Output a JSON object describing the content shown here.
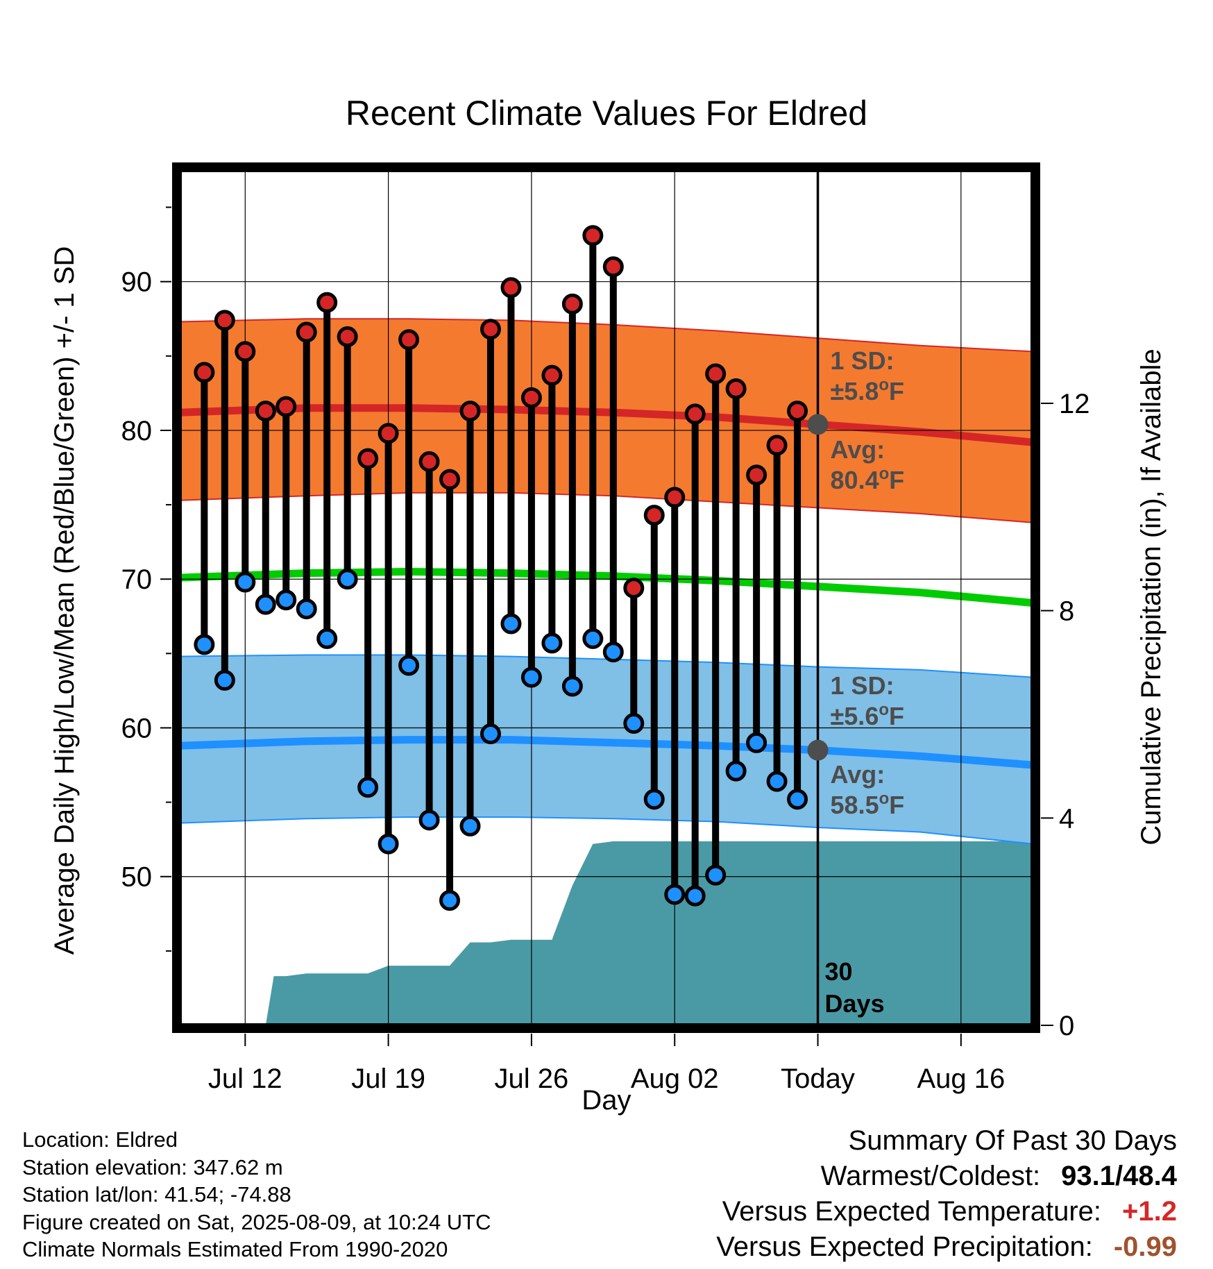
{
  "chart_data": {
    "type": "line",
    "title": "Recent Climate Values For Eldred",
    "xlabel": "Day",
    "ylabel": "Average Daily High/Low/Mean (Red/Blue/Green) +/- 1 SD",
    "y2label": "Cumulative Precipitation (in), If Available",
    "ylim": [
      40,
      97.5
    ],
    "y2lim": [
      0,
      16.5
    ],
    "yticks": [
      50,
      60,
      70,
      80,
      90
    ],
    "y2ticks": [
      0,
      4,
      8,
      12
    ],
    "x_tick_labels": [
      "Jul 12",
      "Jul 19",
      "Jul 26",
      "Aug 02",
      "Today",
      "Aug 16"
    ],
    "x_tick_days": [
      12,
      19,
      26,
      33,
      40,
      47
    ],
    "xlim": [
      8.8,
      50.5
    ],
    "grid": true,
    "today_day": 40,
    "days_label": "30\nDays",
    "daily_days": [
      10,
      11,
      12,
      13,
      14,
      15,
      16,
      17,
      18,
      19,
      20,
      21,
      22,
      23,
      24,
      25,
      26,
      27,
      28,
      29,
      30,
      31,
      32,
      33,
      34,
      35,
      36,
      37,
      38,
      39
    ],
    "daily_high": [
      83.9,
      87.4,
      85.3,
      81.3,
      81.6,
      86.6,
      88.6,
      86.3,
      78.1,
      79.8,
      86.1,
      77.9,
      76.7,
      81.3,
      86.8,
      89.6,
      82.2,
      83.7,
      88.5,
      93.1,
      91.0,
      69.4,
      74.3,
      75.5,
      81.1,
      83.8,
      82.8,
      77.0,
      79.0,
      81.3
    ],
    "daily_low": [
      65.6,
      63.2,
      69.8,
      68.3,
      68.6,
      68.0,
      66.0,
      70.0,
      56.0,
      52.2,
      64.2,
      53.8,
      48.4,
      53.4,
      59.6,
      67.0,
      63.4,
      65.7,
      62.8,
      66.0,
      65.1,
      60.3,
      55.2,
      48.8,
      48.7,
      50.1,
      57.1,
      59.0,
      56.4,
      55.2
    ],
    "normals_day": [
      8.8,
      15,
      20,
      25,
      30,
      35,
      40,
      45,
      50.5
    ],
    "normal_high_avg": [
      81.2,
      81.5,
      81.5,
      81.4,
      81.2,
      80.9,
      80.4,
      79.9,
      79.2
    ],
    "normal_high_upper": [
      87.3,
      87.5,
      87.5,
      87.4,
      87.1,
      86.7,
      86.2,
      85.7,
      85.3
    ],
    "normal_high_lower": [
      75.3,
      75.6,
      75.8,
      75.8,
      75.6,
      75.2,
      74.8,
      74.4,
      73.8
    ],
    "normal_mean": [
      70.1,
      70.4,
      70.5,
      70.4,
      70.2,
      69.9,
      69.5,
      69.1,
      68.4
    ],
    "normal_low_avg": [
      58.8,
      59.1,
      59.2,
      59.2,
      59.0,
      58.8,
      58.5,
      58.1,
      57.5
    ],
    "normal_low_upper": [
      64.8,
      64.9,
      64.9,
      64.8,
      64.6,
      64.4,
      64.1,
      63.9,
      63.4
    ],
    "normal_low_lower": [
      53.6,
      53.9,
      54.0,
      54.0,
      53.9,
      53.7,
      53.3,
      53.0,
      52.2
    ],
    "precip_days": [
      9.2,
      10,
      11,
      12,
      13,
      13.4,
      14,
      15,
      16,
      17,
      18,
      19,
      20,
      21,
      22,
      23,
      24,
      25,
      26,
      27,
      28,
      29,
      30,
      31,
      31.6,
      32,
      33,
      34,
      35,
      36,
      37,
      38,
      39,
      40,
      50.5
    ],
    "precip_cum": [
      0,
      0,
      0,
      0,
      0,
      0.95,
      0.95,
      1.0,
      1.0,
      1.0,
      1.0,
      1.15,
      1.15,
      1.15,
      1.15,
      1.6,
      1.6,
      1.65,
      1.65,
      1.65,
      2.7,
      3.5,
      3.55,
      3.55,
      3.55,
      3.55,
      3.55,
      3.55,
      3.55,
      3.55,
      3.55,
      3.55,
      3.55,
      3.55,
      3.55
    ],
    "annotations": {
      "high_sd_label": "1 SD:",
      "high_sd_value": "±5.8°F",
      "high_avg_label": "Avg:",
      "high_avg_value": "80.4°F",
      "high_avg": 80.4,
      "low_sd_label": "1 SD:",
      "low_sd_value": "±5.6°F",
      "low_avg_label": "Avg:",
      "low_avg_value": "58.5°F",
      "low_avg": 58.5
    },
    "colors": {
      "high_band": "#f47a30",
      "high_avg_line": "#d42626",
      "mean_line": "#00cc00",
      "low_band": "#80bfe6",
      "low_avg_line": "#1f90ff",
      "precip": "#4a9aa5",
      "high_dot": "#d42626",
      "low_dot": "#1f90ff"
    }
  },
  "info": {
    "location": "Location: Eldred",
    "elevation": "Station elevation: 347.62 m",
    "latlon": "Station lat/lon: 41.54; -74.88",
    "created": "Figure created on Sat, 2025-08-09, at 10:24 UTC",
    "normals": "Climate Normals Estimated From 1990-2020"
  },
  "summary": {
    "title": "Summary Of Past 30 Days",
    "warmest_label": "Warmest/Coldest:",
    "warmest_value": "93.1/48.4",
    "temp_label": "Versus Expected Temperature:",
    "temp_value": "+1.2",
    "precip_label": "Versus Expected Precipitation:",
    "precip_value": "-0.99"
  }
}
